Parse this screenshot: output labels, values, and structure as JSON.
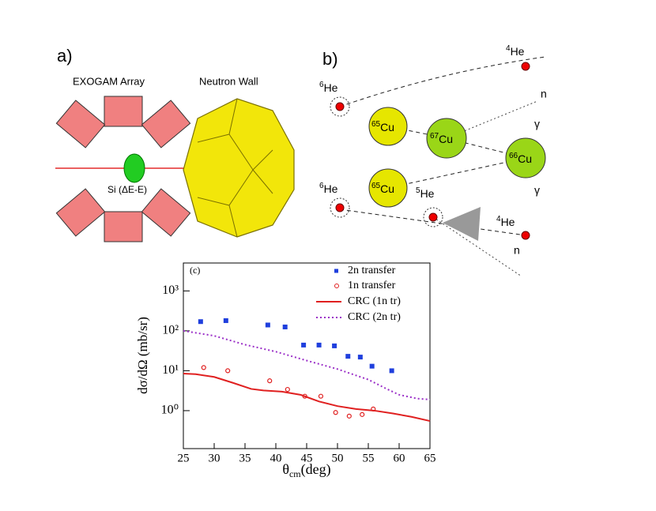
{
  "panel_a": {
    "label": "a)",
    "exogam": "EXOGAM Array",
    "neutron_wall": "Neutron Wall",
    "si": "Si (ΔE-E)"
  },
  "panel_b": {
    "label": "b)",
    "nodes": [
      {
        "mass": "4",
        "symbol": "He"
      },
      {
        "mass": "6",
        "symbol": "He"
      },
      {
        "mass": "65",
        "symbol": "Cu"
      },
      {
        "mass": "67",
        "symbol": "Cu"
      },
      {
        "mass": "66",
        "symbol": "Cu"
      },
      {
        "mass": "6",
        "symbol": "He"
      },
      {
        "mass": "65",
        "symbol": "Cu"
      },
      {
        "mass": "5",
        "symbol": "He"
      },
      {
        "mass": "4",
        "symbol": "He"
      }
    ],
    "particles": [
      "n",
      "γ",
      "γ",
      "n"
    ]
  },
  "chart_data": {
    "type": "scatter",
    "annotation": "(c)",
    "ylabel": "dσ/dΩ (mb/sr)",
    "xlabel": "θ",
    "xlabel_sub": "cm",
    "xlabel_unit": "(deg)",
    "xlim": [
      25,
      65
    ],
    "xticks": [
      25,
      30,
      35,
      40,
      45,
      50,
      55,
      60,
      65
    ],
    "ylim": [
      0.112,
      5000
    ],
    "log_y": true,
    "yticks": [
      {
        "value": 1,
        "label": "10⁰"
      },
      {
        "value": 10,
        "label": "10¹"
      },
      {
        "value": 100,
        "label": "10²"
      },
      {
        "value": 1000,
        "label": "10³"
      }
    ],
    "legend": "upper right",
    "series": [
      {
        "name": "2n transfer",
        "color": "#1f3fdd",
        "style": "square",
        "x": [
          27.8,
          31.9,
          38.7,
          41.5,
          44.5,
          47,
          49.5,
          51.7,
          53.7,
          55.6,
          58.8
        ],
        "values": [
          170,
          180,
          140,
          125,
          44,
          44,
          42,
          23,
          22,
          13,
          10
        ]
      },
      {
        "name": "1n transfer",
        "color": "#e02020",
        "style": "circle",
        "x": [
          28.3,
          32.2,
          39,
          41.9,
          44.7,
          47.3,
          49.7,
          51.9,
          54,
          55.8
        ],
        "values": [
          12,
          10,
          5.6,
          3.4,
          2.3,
          2.3,
          0.9,
          0.73,
          0.8,
          1.1
        ]
      },
      {
        "name": "CRC (1n tr)",
        "color": "#e02020",
        "style": "solid",
        "x": [
          25,
          27,
          30,
          33,
          36,
          38,
          41,
          44,
          47,
          50,
          53,
          56,
          59,
          62,
          65
        ],
        "values": [
          8.5,
          8.2,
          7,
          5,
          3.5,
          3.2,
          3,
          2.5,
          1.7,
          1.3,
          1.1,
          1,
          0.85,
          0.7,
          0.55
        ]
      },
      {
        "name": "CRC (2n tr)",
        "color": "#9b30c8",
        "style": "dotted",
        "x": [
          25,
          30,
          35,
          40,
          45,
          50,
          55,
          58,
          60,
          63,
          65
        ],
        "values": [
          100,
          75,
          45,
          30,
          18,
          11,
          6,
          3.5,
          2.5,
          2,
          1.9
        ]
      }
    ]
  }
}
